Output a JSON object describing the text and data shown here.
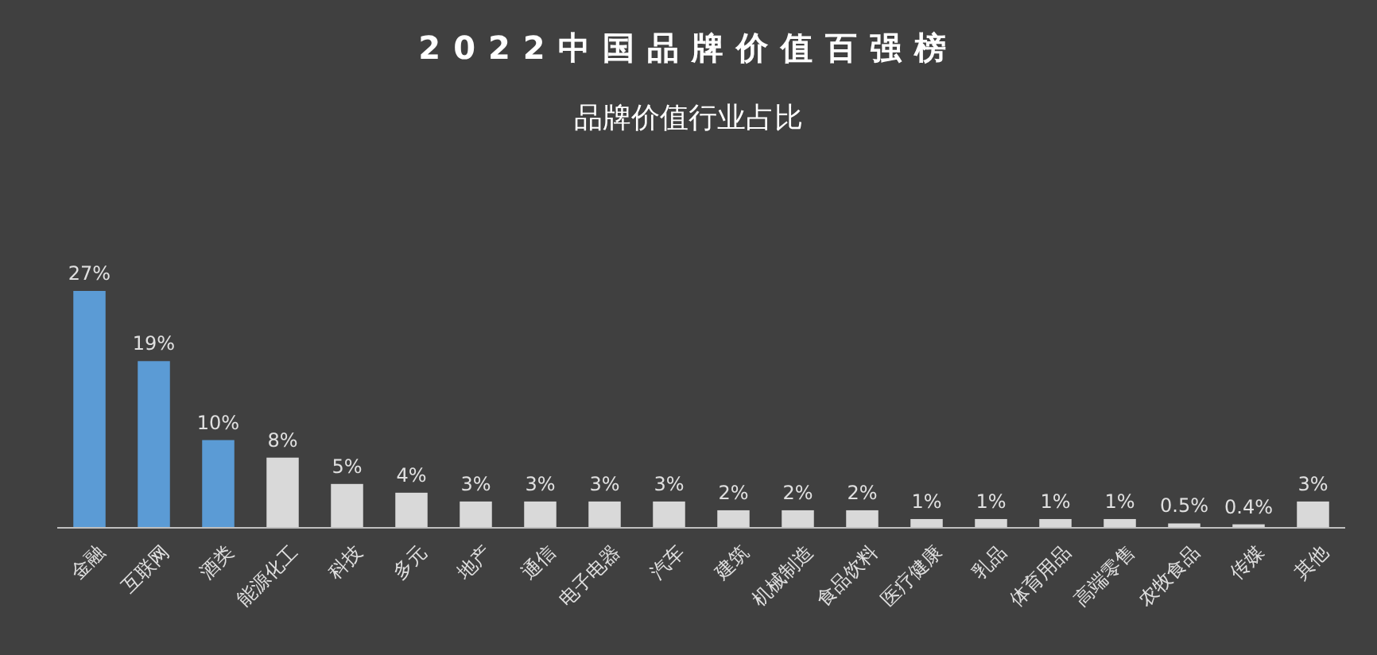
{
  "chart_data": {
    "type": "bar",
    "title": "2022中国品牌价值百强榜",
    "subtitle": "品牌价值行业占比",
    "categories": [
      "金融",
      "互联网",
      "酒类",
      "能源化工",
      "科技",
      "多元",
      "地产",
      "通信",
      "电子电器",
      "汽车",
      "建筑",
      "机械制造",
      "食品饮料",
      "医疗健康",
      "乳品",
      "体育用品",
      "高端零售",
      "农牧食品",
      "传媒",
      "其他"
    ],
    "values": [
      27,
      19,
      10,
      8,
      5,
      4,
      3,
      3,
      3,
      3,
      2,
      2,
      2,
      1,
      1,
      1,
      1,
      0.5,
      0.4,
      3
    ],
    "colors": [
      "#5b9bd5",
      "#5b9bd5",
      "#5b9bd5",
      "#d9d9d9",
      "#d9d9d9",
      "#d9d9d9",
      "#d9d9d9",
      "#d9d9d9",
      "#d9d9d9",
      "#d9d9d9",
      "#d9d9d9",
      "#d9d9d9",
      "#d9d9d9",
      "#d9d9d9",
      "#d9d9d9",
      "#d9d9d9",
      "#d9d9d9",
      "#d9d9d9",
      "#d9d9d9",
      "#d9d9d9"
    ],
    "value_labels": [
      "27%",
      "19%",
      "10%",
      "8%",
      "5%",
      "4%",
      "3%",
      "3%",
      "3%",
      "3%",
      "2%",
      "2%",
      "2%",
      "1%",
      "1%",
      "1%",
      "1%",
      "0.5%",
      "0.4%",
      "3%"
    ]
  }
}
